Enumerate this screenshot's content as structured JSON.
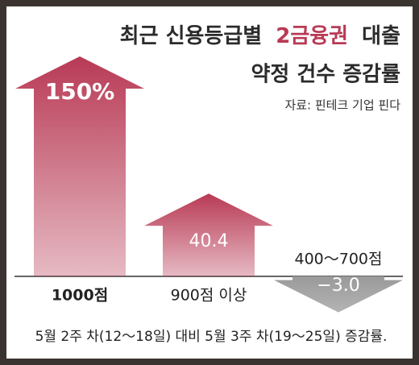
{
  "chart_data": {
    "type": "arrow-bar",
    "title": {
      "line1": [
        "최근 신용등급별",
        "2금융권",
        "대출"
      ],
      "line2": "약정 건수 증감률"
    },
    "title_color": "#2b2b2b",
    "title_highlight_color": "#b83a55",
    "source": "자료: 핀테크 기업 핀다",
    "categories": [
      "1000점",
      "900점 이상",
      "400～700점"
    ],
    "values": [
      150,
      40.4,
      -3.0
    ],
    "value_labels": [
      "150%",
      "40.4",
      "−3.0"
    ],
    "color": "#b83a55",
    "negative_color": "#9a9a9a",
    "note": "5월 2주 차(12～18일) 대비 5월 3주 차(19～25일) 증감률."
  }
}
